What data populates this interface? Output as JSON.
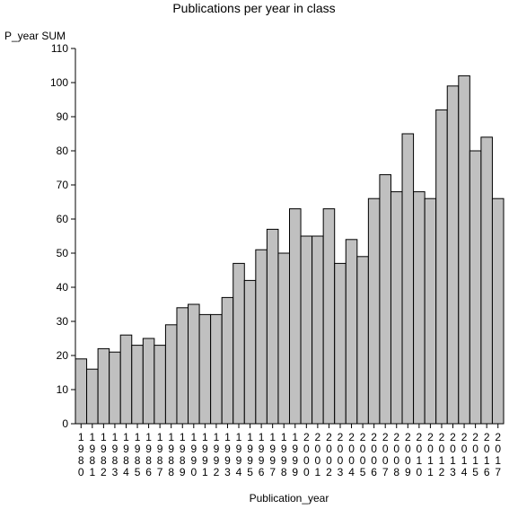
{
  "chart_data": {
    "type": "bar",
    "title": "Publications per year in class",
    "ylabel": "P_year SUM",
    "xlabel": "Publication_year",
    "ylim": [
      0,
      110
    ],
    "yticks": [
      0,
      10,
      20,
      30,
      40,
      50,
      60,
      70,
      80,
      90,
      100,
      110
    ],
    "categories": [
      "1980",
      "1981",
      "1982",
      "1983",
      "1984",
      "1985",
      "1986",
      "1987",
      "1988",
      "1989",
      "1990",
      "1991",
      "1992",
      "1993",
      "1994",
      "1995",
      "1996",
      "1997",
      "1998",
      "1999",
      "2000",
      "2001",
      "2002",
      "2003",
      "2004",
      "2005",
      "2006",
      "2007",
      "2008",
      "2009",
      "2010",
      "2011",
      "2012",
      "2013",
      "2014",
      "2015",
      "2016",
      "2017"
    ],
    "values": [
      19,
      16,
      22,
      21,
      26,
      23,
      25,
      23,
      29,
      34,
      35,
      32,
      32,
      37,
      47,
      42,
      51,
      57,
      50,
      63,
      55,
      55,
      63,
      47,
      54,
      49,
      66,
      73,
      68,
      85,
      68,
      66,
      92,
      99,
      102,
      80,
      84,
      66
    ],
    "grid": false,
    "legend": "none",
    "colors": {
      "bar_fill": "#c0c0c0",
      "bar_stroke": "#000000",
      "axis": "#000000"
    }
  }
}
